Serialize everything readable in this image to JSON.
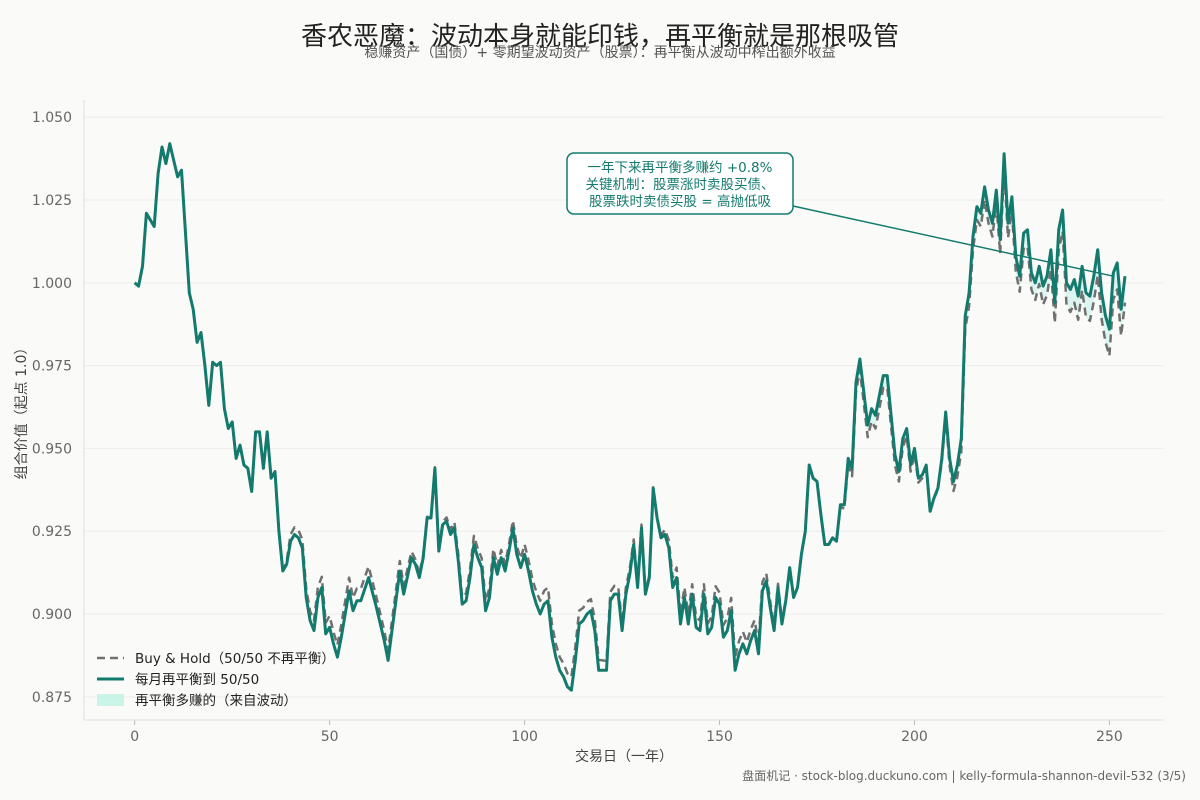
{
  "header": {
    "title": "香农恶魔：波动本身就能印钱，再平衡就是那根吸管",
    "subtitle": "稳赚资产（国债）+ 零期望波动资产（股票）：再平衡从波动中榨出额外收益"
  },
  "footer": {
    "text": "盘面机记 · stock-blog.duckuno.com | kelly-formula-shannon-devil-532 (3/5)"
  },
  "colors": {
    "rebalance": "#137a6e",
    "buyhold": "#707070",
    "fill": "#bff3e5",
    "grid": "#ececea",
    "axis": "#dddddd"
  },
  "chart_data": {
    "type": "line",
    "xlabel": "交易日（一年）",
    "ylabel": "组合价值（起点 1.0）",
    "xlim": [
      -13,
      264
    ],
    "ylim": [
      0.868,
      1.0552
    ],
    "xticks": [
      0,
      50,
      100,
      150,
      200,
      250
    ],
    "yticks": [
      0.875,
      0.9,
      0.925,
      0.95,
      0.975,
      1.0,
      1.025,
      1.05
    ],
    "ytick_labels": [
      "0.875",
      "0.900",
      "0.925",
      "0.950",
      "0.975",
      "1.000",
      "1.025",
      "1.050"
    ],
    "grid": true,
    "legend_position": "lower-left",
    "legend": [
      "Buy & Hold（50/50 不再平衡）",
      "每月再平衡到 50/50",
      "再平衡多赚的（来自波动）"
    ],
    "annotation": {
      "lines": [
        "一年下来再平衡多赚约 +0.8%",
        "关键机制：股票涨时卖股买债、",
        "股票跌时卖债买股 = 高抛低吸"
      ],
      "target": [
        251,
        1.002
      ]
    },
    "keypoints": [
      [
        0,
        1.0
      ],
      [
        1,
        0.999
      ],
      [
        2,
        1.005
      ],
      [
        3,
        1.021
      ],
      [
        5,
        1.017
      ],
      [
        6,
        1.033
      ],
      [
        7,
        1.041
      ],
      [
        8,
        1.036
      ],
      [
        9,
        1.042
      ],
      [
        10,
        1.037
      ],
      [
        11,
        1.032
      ],
      [
        12,
        1.034
      ],
      [
        14,
        0.997
      ],
      [
        15,
        0.992
      ],
      [
        16,
        0.982
      ],
      [
        17,
        0.985
      ],
      [
        18,
        0.975
      ],
      [
        19,
        0.963
      ],
      [
        20,
        0.976
      ],
      [
        21,
        0.975
      ],
      [
        22,
        0.976
      ],
      [
        23,
        0.962
      ],
      [
        24,
        0.956
      ],
      [
        25,
        0.958
      ],
      [
        26,
        0.947
      ],
      [
        27,
        0.951
      ],
      [
        28,
        0.945
      ],
      [
        29,
        0.944
      ],
      [
        30,
        0.937
      ],
      [
        31,
        0.955
      ],
      [
        32,
        0.955
      ],
      [
        33,
        0.944
      ],
      [
        34,
        0.955
      ],
      [
        35,
        0.941
      ],
      [
        36,
        0.943
      ],
      [
        37,
        0.925
      ],
      [
        38,
        0.913
      ],
      [
        39,
        0.915
      ],
      [
        40,
        0.922
      ],
      [
        41,
        0.924
      ],
      [
        42,
        0.923
      ],
      [
        43,
        0.92
      ],
      [
        44,
        0.905
      ],
      [
        45,
        0.898
      ],
      [
        46,
        0.895
      ],
      [
        47,
        0.905
      ],
      [
        48,
        0.908
      ],
      [
        49,
        0.894
      ],
      [
        50,
        0.896
      ],
      [
        51,
        0.891
      ],
      [
        52,
        0.887
      ],
      [
        53,
        0.893
      ],
      [
        55,
        0.907
      ],
      [
        56,
        0.901
      ],
      [
        57,
        0.904
      ],
      [
        58,
        0.904
      ],
      [
        60,
        0.911
      ],
      [
        62,
        0.902
      ],
      [
        64,
        0.892
      ],
      [
        65,
        0.886
      ],
      [
        66,
        0.895
      ],
      [
        68,
        0.913
      ],
      [
        69,
        0.906
      ],
      [
        71,
        0.917
      ],
      [
        72,
        0.915
      ],
      [
        73,
        0.911
      ],
      [
        74,
        0.917
      ],
      [
        75,
        0.929
      ],
      [
        76,
        0.929
      ],
      [
        77,
        0.944
      ],
      [
        78,
        0.919
      ],
      [
        79,
        0.927
      ],
      [
        80,
        0.928
      ],
      [
        81,
        0.924
      ],
      [
        82,
        0.926
      ],
      [
        83,
        0.916
      ],
      [
        84,
        0.903
      ],
      [
        85,
        0.904
      ],
      [
        86,
        0.911
      ],
      [
        87,
        0.921
      ],
      [
        88,
        0.917
      ],
      [
        89,
        0.914
      ],
      [
        90,
        0.901
      ],
      [
        91,
        0.905
      ],
      [
        92,
        0.917
      ],
      [
        93,
        0.912
      ],
      [
        94,
        0.917
      ],
      [
        95,
        0.913
      ],
      [
        96,
        0.919
      ],
      [
        97,
        0.926
      ],
      [
        98,
        0.918
      ],
      [
        99,
        0.914
      ],
      [
        100,
        0.918
      ],
      [
        101,
        0.913
      ],
      [
        102,
        0.907
      ],
      [
        103,
        0.903
      ],
      [
        104,
        0.9
      ],
      [
        105,
        0.903
      ],
      [
        106,
        0.904
      ],
      [
        107,
        0.893
      ],
      [
        108,
        0.887
      ],
      [
        109,
        0.883
      ],
      [
        110,
        0.881
      ],
      [
        111,
        0.878
      ],
      [
        112,
        0.877
      ],
      [
        113,
        0.886
      ],
      [
        114,
        0.897
      ],
      [
        115,
        0.898
      ],
      [
        116,
        0.9
      ],
      [
        117,
        0.901
      ],
      [
        118,
        0.895
      ],
      [
        119,
        0.883
      ],
      [
        120,
        0.883
      ],
      [
        121,
        0.883
      ],
      [
        122,
        0.904
      ],
      [
        123,
        0.906
      ],
      [
        124,
        0.906
      ],
      [
        125,
        0.895
      ],
      [
        126,
        0.906
      ],
      [
        127,
        0.912
      ],
      [
        128,
        0.921
      ],
      [
        129,
        0.908
      ],
      [
        130,
        0.926
      ],
      [
        131,
        0.906
      ],
      [
        132,
        0.911
      ],
      [
        133,
        0.938
      ],
      [
        134,
        0.929
      ],
      [
        135,
        0.923
      ],
      [
        136,
        0.924
      ],
      [
        137,
        0.92
      ],
      [
        138,
        0.908
      ],
      [
        139,
        0.911
      ],
      [
        140,
        0.897
      ],
      [
        141,
        0.905
      ],
      [
        142,
        0.897
      ],
      [
        143,
        0.906
      ],
      [
        144,
        0.896
      ],
      [
        145,
        0.895
      ],
      [
        146,
        0.906
      ],
      [
        147,
        0.894
      ],
      [
        148,
        0.896
      ],
      [
        149,
        0.905
      ],
      [
        150,
        0.903
      ],
      [
        151,
        0.893
      ],
      [
        152,
        0.895
      ],
      [
        153,
        0.901
      ],
      [
        154,
        0.883
      ],
      [
        155,
        0.888
      ],
      [
        156,
        0.891
      ],
      [
        157,
        0.888
      ],
      [
        158,
        0.892
      ],
      [
        159,
        0.895
      ],
      [
        160,
        0.888
      ],
      [
        161,
        0.907
      ],
      [
        162,
        0.91
      ],
      [
        163,
        0.902
      ],
      [
        164,
        0.895
      ],
      [
        165,
        0.908
      ],
      [
        166,
        0.897
      ],
      [
        167,
        0.904
      ],
      [
        168,
        0.914
      ],
      [
        169,
        0.905
      ],
      [
        170,
        0.908
      ],
      [
        171,
        0.918
      ],
      [
        172,
        0.925
      ],
      [
        173,
        0.945
      ],
      [
        174,
        0.941
      ],
      [
        175,
        0.94
      ],
      [
        176,
        0.93
      ],
      [
        177,
        0.921
      ],
      [
        178,
        0.921
      ],
      [
        179,
        0.923
      ],
      [
        180,
        0.922
      ],
      [
        181,
        0.933
      ],
      [
        182,
        0.933
      ],
      [
        183,
        0.947
      ],
      [
        184,
        0.944
      ],
      [
        185,
        0.97
      ],
      [
        186,
        0.977
      ],
      [
        187,
        0.967
      ],
      [
        188,
        0.957
      ],
      [
        189,
        0.962
      ],
      [
        190,
        0.96
      ],
      [
        191,
        0.966
      ],
      [
        192,
        0.972
      ],
      [
        193,
        0.972
      ],
      [
        194,
        0.96
      ],
      [
        195,
        0.948
      ],
      [
        196,
        0.943
      ],
      [
        197,
        0.953
      ],
      [
        198,
        0.956
      ],
      [
        199,
        0.945
      ],
      [
        200,
        0.95
      ],
      [
        201,
        0.941
      ],
      [
        202,
        0.942
      ],
      [
        203,
        0.945
      ],
      [
        204,
        0.931
      ],
      [
        205,
        0.935
      ],
      [
        206,
        0.938
      ],
      [
        207,
        0.947
      ],
      [
        208,
        0.961
      ],
      [
        209,
        0.947
      ],
      [
        210,
        0.94
      ],
      [
        211,
        0.945
      ],
      [
        212,
        0.953
      ],
      [
        213,
        0.99
      ],
      [
        214,
        0.997
      ],
      [
        215,
        1.014
      ],
      [
        216,
        1.023
      ],
      [
        217,
        1.021
      ],
      [
        218,
        1.029
      ],
      [
        219,
        1.022
      ],
      [
        220,
        1.018
      ],
      [
        221,
        1.028
      ],
      [
        222,
        1.013
      ],
      [
        223,
        1.039
      ],
      [
        224,
        1.018
      ],
      [
        225,
        1.026
      ],
      [
        226,
        1.008
      ],
      [
        227,
        1.002
      ],
      [
        228,
        1.015
      ],
      [
        229,
        1.016
      ],
      [
        230,
        1.003
      ],
      [
        231,
        1.0
      ],
      [
        232,
        1.005
      ],
      [
        233,
        0.999
      ],
      [
        234,
        1.002
      ],
      [
        235,
        1.01
      ],
      [
        236,
        0.994
      ],
      [
        237,
        1.016
      ],
      [
        238,
        1.022
      ],
      [
        239,
        1.0
      ],
      [
        240,
        0.998
      ],
      [
        241,
        1.001
      ],
      [
        242,
        0.996
      ],
      [
        243,
        1.005
      ],
      [
        244,
        0.997
      ],
      [
        245,
        0.996
      ],
      [
        246,
        1.002
      ],
      [
        247,
        1.01
      ],
      [
        248,
        0.997
      ],
      [
        249,
        0.99
      ],
      [
        250,
        0.986
      ],
      [
        251,
        1.003
      ],
      [
        252,
        1.006
      ],
      [
        253,
        0.992
      ],
      [
        254,
        1.002
      ]
    ],
    "buyhold_offsets": [
      [
        0,
        0.0
      ],
      [
        38,
        0.0
      ],
      [
        40,
        0.002
      ],
      [
        46,
        0.003
      ],
      [
        55,
        0.004
      ],
      [
        63,
        0.003
      ],
      [
        68,
        0.003
      ],
      [
        76,
        0.0
      ],
      [
        83,
        0.002
      ],
      [
        90,
        0.003
      ],
      [
        96,
        0.002
      ],
      [
        104,
        0.004
      ],
      [
        114,
        0.004
      ],
      [
        126,
        0.002
      ],
      [
        134,
        0.0
      ],
      [
        138,
        0.003
      ],
      [
        146,
        0.003
      ],
      [
        154,
        0.004
      ],
      [
        160,
        0.003
      ],
      [
        168,
        0.0
      ],
      [
        180,
        0.0
      ],
      [
        185,
        -0.003
      ],
      [
        190,
        -0.004
      ],
      [
        196,
        -0.003
      ],
      [
        205,
        0.0
      ],
      [
        212,
        -0.004
      ],
      [
        220,
        -0.004
      ],
      [
        230,
        -0.005
      ],
      [
        241,
        -0.007
      ],
      [
        249,
        -0.008
      ],
      [
        254,
        -0.008
      ]
    ]
  }
}
